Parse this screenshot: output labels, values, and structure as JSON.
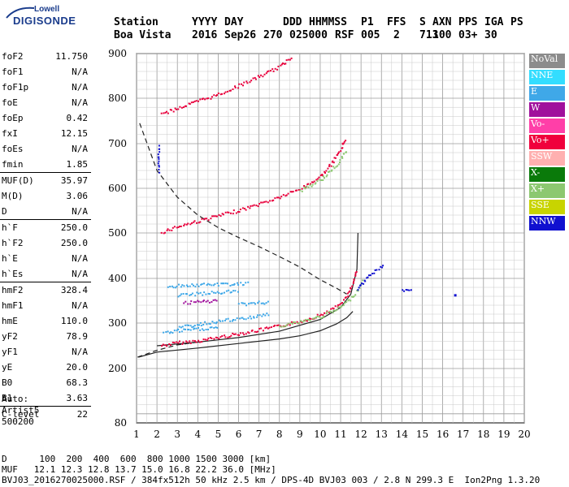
{
  "logo": {
    "line1": "Lowell",
    "line2": "DIGISONDE"
  },
  "header": {
    "labels": [
      "Station",
      "YYYY",
      "DAY",
      "DDD",
      "HHMMSS",
      "P1",
      "FFS",
      "S",
      "AXN",
      "PPS",
      "IGA",
      "PS"
    ],
    "values": [
      "Boa Vista",
      "2016",
      "Sep26",
      "270",
      "025000",
      "RSF",
      "005",
      "2",
      "713",
      "100",
      "03+",
      "30"
    ]
  },
  "params": [
    {
      "name": "foF2",
      "value": "11.750",
      "sep": false
    },
    {
      "name": "foF1",
      "value": "N/A",
      "sep": false
    },
    {
      "name": "foF1p",
      "value": "N/A",
      "sep": false
    },
    {
      "name": "foE",
      "value": "N/A",
      "sep": false
    },
    {
      "name": "foEp",
      "value": "0.42",
      "sep": false
    },
    {
      "name": "fxI",
      "value": "12.15",
      "sep": false
    },
    {
      "name": "foEs",
      "value": "N/A",
      "sep": false
    },
    {
      "name": "fmin",
      "value": "1.85",
      "sep": false
    },
    {
      "name": "MUF(D)",
      "value": "35.97",
      "sep": true
    },
    {
      "name": "M(D)",
      "value": "3.06",
      "sep": false
    },
    {
      "name": "D",
      "value": "N/A",
      "sep": false
    },
    {
      "name": "h`F",
      "value": "250.0",
      "sep": true
    },
    {
      "name": "h`F2",
      "value": "250.0",
      "sep": false
    },
    {
      "name": "h`E",
      "value": "N/A",
      "sep": false
    },
    {
      "name": "h`Es",
      "value": "N/A",
      "sep": false
    },
    {
      "name": "hmF2",
      "value": "328.4",
      "sep": true
    },
    {
      "name": "hmF1",
      "value": "N/A",
      "sep": false
    },
    {
      "name": "hmE",
      "value": "110.0",
      "sep": false
    },
    {
      "name": "yF2",
      "value": "78.9",
      "sep": false
    },
    {
      "name": "yF1",
      "value": "N/A",
      "sep": false
    },
    {
      "name": "yE",
      "value": "20.0",
      "sep": false
    },
    {
      "name": "B0",
      "value": "68.3",
      "sep": false
    },
    {
      "name": "B1",
      "value": "3.63",
      "sep": false
    },
    {
      "name": "C-level",
      "value": "22",
      "sep": true
    }
  ],
  "auto": [
    "Auto:",
    "Artist5",
    "500200"
  ],
  "legend": [
    {
      "label": "NoVal",
      "color": "#8c8c8c"
    },
    {
      "label": "NNE",
      "color": "#33ddff"
    },
    {
      "label": "E",
      "color": "#3fa8e8"
    },
    {
      "label": "W",
      "color": "#a0109c"
    },
    {
      "label": "Vo-",
      "color": "#ff3fa8"
    },
    {
      "label": "Vo+",
      "color": "#f0003c"
    },
    {
      "label": "SSW",
      "color": "#ffb0b0"
    },
    {
      "label": "X-",
      "color": "#0a7a0a"
    },
    {
      "label": "X+",
      "color": "#8cc870"
    },
    {
      "label": "SSE",
      "color": "#c8d400"
    },
    {
      "label": "NNW",
      "color": "#1010d0"
    }
  ],
  "footer": {
    "line1": "D      100  200  400  600  800 1000 1500 3000 [km]",
    "line2": "MUF   12.1 12.3 12.8 13.7 15.0 16.8 22.2 36.0 [MHz]",
    "line3": "BVJ03_2016270025000.RSF / 384fx512h 50 kHz 2.5 km / DPS-4D BVJ03 003 / 2.8 N 299.3 E  Ion2Png 1.3.20"
  },
  "chart_data": {
    "type": "scatter",
    "xlim": [
      1,
      20
    ],
    "ylim": [
      80,
      900
    ],
    "xticks": [
      1,
      2,
      3,
      4,
      5,
      6,
      7,
      8,
      9,
      10,
      11,
      12,
      13,
      14,
      15,
      16,
      17,
      18,
      19,
      20
    ],
    "yticks": [
      80,
      200,
      300,
      400,
      500,
      600,
      700,
      800,
      900
    ],
    "grid": true,
    "legend_position": "right",
    "series": [
      {
        "name": "Vo+",
        "color": "#e8003c",
        "segments": [
          [
            [
              2.2,
              252
            ],
            [
              3,
              258
            ],
            [
              4,
              262
            ],
            [
              5,
              270
            ],
            [
              6,
              278
            ],
            [
              7,
              286
            ],
            [
              8,
              295
            ],
            [
              9,
              305
            ],
            [
              10,
              320
            ],
            [
              10.8,
              338
            ],
            [
              11.3,
              362
            ],
            [
              11.6,
              392
            ],
            [
              11.75,
              420
            ]
          ],
          [
            [
              2.2,
              503
            ],
            [
              3,
              516
            ],
            [
              4,
              528
            ],
            [
              5,
              540
            ],
            [
              6,
              552
            ],
            [
              7,
              566
            ],
            [
              8,
              582
            ],
            [
              9,
              600
            ],
            [
              10,
              628
            ],
            [
              10.6,
              660
            ],
            [
              11,
              690
            ],
            [
              11.2,
              715
            ]
          ],
          [
            [
              2.2,
              766
            ],
            [
              3,
              780
            ],
            [
              4,
              795
            ],
            [
              5,
              810
            ],
            [
              6,
              830
            ],
            [
              7,
              850
            ],
            [
              8,
              872
            ],
            [
              8.6,
              895
            ]
          ]
        ]
      },
      {
        "name": "X+",
        "color": "#8cc870",
        "segments": [
          [
            [
              8,
              296
            ],
            [
              9,
              304
            ],
            [
              10,
              316
            ],
            [
              10.8,
              332
            ],
            [
              11.4,
              352
            ],
            [
              11.8,
              375
            ],
            [
              12.1,
              400
            ]
          ],
          [
            [
              9,
              596
            ],
            [
              10,
              620
            ],
            [
              10.8,
              655
            ],
            [
              11.3,
              690
            ]
          ]
        ]
      },
      {
        "name": "E",
        "color": "#3fa8e8",
        "segments": [
          [
            [
              3,
              291
            ],
            [
              4,
              298
            ],
            [
              5,
              306
            ],
            [
              6,
              310
            ],
            [
              7,
              318
            ],
            [
              7.5,
              322
            ]
          ],
          [
            [
              2.3,
              280
            ],
            [
              3,
              284
            ],
            [
              4,
              288
            ],
            [
              5,
              292
            ]
          ],
          [
            [
              3,
              363
            ],
            [
              4,
              367
            ],
            [
              5,
              370
            ],
            [
              6,
              373
            ]
          ],
          [
            [
              2.5,
              384
            ],
            [
              3.5,
              386
            ],
            [
              5,
              388
            ],
            [
              6.5,
              390
            ]
          ],
          [
            [
              6,
              343
            ],
            [
              6.8,
              346
            ],
            [
              7.5,
              349
            ]
          ]
        ]
      },
      {
        "name": "W",
        "color": "#a0109c",
        "segments": [
          [
            [
              3.3,
              346
            ],
            [
              4.2,
              349
            ],
            [
              5,
              352
            ]
          ]
        ]
      },
      {
        "name": "NNW",
        "color": "#1010d0",
        "segments": [
          [
            [
              11.8,
              376
            ],
            [
              12,
              390
            ],
            [
              12.3,
              405
            ],
            [
              12.6,
              415
            ],
            [
              12.9,
              425
            ],
            [
              13.1,
              431
            ]
          ],
          [
            [
              14,
              373
            ],
            [
              14.5,
              375
            ]
          ],
          [
            [
              2.05,
              640
            ],
            [
              2.05,
              670
            ],
            [
              2.05,
              700
            ]
          ],
          [
            [
              16.6,
              363
            ]
          ]
        ]
      }
    ],
    "model_curves": [
      {
        "style": "solid",
        "points": [
          [
            1.1,
            225
          ],
          [
            2,
            236
          ],
          [
            4,
            245
          ],
          [
            6,
            255
          ],
          [
            8,
            265
          ],
          [
            9,
            272
          ],
          [
            10,
            283
          ],
          [
            10.8,
            298
          ],
          [
            11.3,
            312
          ],
          [
            11.6,
            326
          ]
        ]
      },
      {
        "style": "solid",
        "points": [
          [
            2,
            250
          ],
          [
            4,
            258
          ],
          [
            6,
            268
          ],
          [
            8,
            282
          ],
          [
            10,
            308
          ],
          [
            11,
            335
          ],
          [
            11.5,
            365
          ],
          [
            11.8,
            420
          ],
          [
            11.85,
            500
          ]
        ]
      },
      {
        "style": "dashed",
        "points": [
          [
            1.15,
            745
          ],
          [
            2,
            640
          ],
          [
            3,
            580
          ],
          [
            4,
            540
          ],
          [
            5,
            512
          ],
          [
            6,
            490
          ],
          [
            7,
            470
          ],
          [
            8,
            448
          ],
          [
            9,
            425
          ],
          [
            10,
            397
          ],
          [
            10.8,
            378
          ],
          [
            11.3,
            365
          ]
        ]
      },
      {
        "style": "dashed",
        "points": [
          [
            1.05,
            225
          ],
          [
            2,
            240
          ],
          [
            3,
            252
          ],
          [
            4,
            258
          ]
        ]
      }
    ]
  }
}
